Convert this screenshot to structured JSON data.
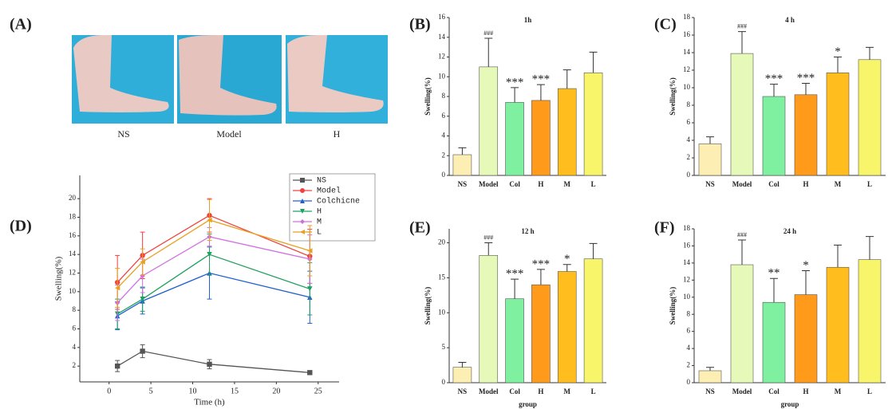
{
  "photos": {
    "panel": "(A)",
    "labels": [
      "NS",
      "Model",
      "H"
    ]
  },
  "chart_data": [
    {
      "type": "bar",
      "panel": "(B)",
      "title": "1h",
      "y_label": "Swelling(%)",
      "categories": [
        "NS",
        "Model",
        "Col",
        "H",
        "M",
        "L"
      ],
      "values": [
        2.1,
        11.0,
        7.4,
        7.6,
        8.8,
        10.4
      ],
      "errors": [
        0.7,
        2.9,
        1.5,
        1.6,
        1.9,
        2.1
      ],
      "annotations": [
        null,
        "###",
        "***",
        "***",
        null,
        null
      ],
      "colors": [
        "#fdeeb3",
        "#e6f9b9",
        "#7ef0a0",
        "#ff9a1a",
        "#ffbe1e",
        "#f8f56a"
      ],
      "ylim": [
        0,
        16
      ],
      "yticks": [
        0,
        2,
        4,
        6,
        8,
        10,
        12,
        14,
        16
      ]
    },
    {
      "type": "bar",
      "panel": "(C)",
      "title": "4 h",
      "y_label": "Swelling(%)",
      "categories": [
        "NS",
        "Model",
        "Col",
        "H",
        "M",
        "L"
      ],
      "values": [
        3.6,
        13.9,
        9.0,
        9.2,
        11.7,
        13.2
      ],
      "errors": [
        0.8,
        2.5,
        1.4,
        1.3,
        1.8,
        1.4
      ],
      "annotations": [
        null,
        "###",
        "***",
        "***",
        "*",
        null
      ],
      "colors": [
        "#fdeeb3",
        "#e6f9b9",
        "#7ef0a0",
        "#ff9a1a",
        "#ffbe1e",
        "#f8f56a"
      ],
      "ylim": [
        0,
        18
      ],
      "yticks": [
        0,
        2,
        4,
        6,
        8,
        10,
        12,
        14,
        16,
        18
      ]
    },
    {
      "type": "line",
      "panel": "(D)",
      "x_label": "Time (h)",
      "y_label": "Swelling(%)",
      "x": [
        1,
        4,
        12,
        24
      ],
      "series": [
        {
          "name": "NS",
          "color": "#555555",
          "marker": "square",
          "values": [
            2.0,
            3.6,
            2.2,
            1.3
          ],
          "errors": [
            0.6,
            0.7,
            0.5,
            0.2
          ]
        },
        {
          "name": "Model",
          "color": "#f04040",
          "marker": "circle",
          "values": [
            11.0,
            13.9,
            18.2,
            13.8
          ],
          "errors": [
            2.9,
            2.5,
            1.8,
            2.9
          ]
        },
        {
          "name": "Colchicne",
          "color": "#2060d0",
          "marker": "up",
          "values": [
            7.4,
            9.0,
            12.0,
            9.4
          ],
          "errors": [
            1.5,
            1.4,
            2.8,
            2.8
          ]
        },
        {
          "name": "H",
          "color": "#20a060",
          "marker": "down",
          "values": [
            7.6,
            9.2,
            14.0,
            10.3
          ],
          "errors": [
            1.6,
            1.3,
            2.2,
            2.8
          ]
        },
        {
          "name": "M",
          "color": "#d070e0",
          "marker": "diamond",
          "values": [
            8.8,
            11.7,
            15.9,
            13.5
          ],
          "errors": [
            1.9,
            1.8,
            1.0,
            2.6
          ]
        },
        {
          "name": "L",
          "color": "#e8a020",
          "marker": "left",
          "values": [
            10.4,
            13.2,
            17.7,
            14.4
          ],
          "errors": [
            2.1,
            1.4,
            2.2,
            2.7
          ]
        }
      ],
      "xlim": [
        -3.5,
        27.5
      ],
      "xticks": [
        0,
        5,
        10,
        15,
        20,
        25
      ],
      "ylim": [
        0.3,
        22.5
      ],
      "yticks": [
        2,
        4,
        6,
        8,
        10,
        12,
        14,
        16,
        18,
        20
      ]
    },
    {
      "type": "bar",
      "panel": "(E)",
      "title": "12 h",
      "y_label": "Swelling(%)",
      "x_label": "group",
      "categories": [
        "NS",
        "Model",
        "Col",
        "H",
        "M",
        "L"
      ],
      "values": [
        2.2,
        18.2,
        12.0,
        14.0,
        15.9,
        17.7
      ],
      "errors": [
        0.7,
        1.8,
        2.8,
        2.2,
        1.0,
        2.2
      ],
      "annotations": [
        null,
        "###",
        "***",
        "***",
        "*",
        null
      ],
      "colors": [
        "#fdeeb3",
        "#e6f9b9",
        "#7ef0a0",
        "#ff9a1a",
        "#ffbe1e",
        "#f8f56a"
      ],
      "ylim": [
        0,
        22
      ],
      "yticks": [
        0,
        5,
        10,
        15,
        20
      ]
    },
    {
      "type": "bar",
      "panel": "(F)",
      "title": "24 h",
      "y_label": "Swelling(%)",
      "x_label": "group",
      "categories": [
        "NS",
        "Model",
        "Col",
        "H",
        "M",
        "L"
      ],
      "values": [
        1.4,
        13.8,
        9.4,
        10.3,
        13.5,
        14.4
      ],
      "errors": [
        0.4,
        2.9,
        2.8,
        2.8,
        2.6,
        2.7
      ],
      "annotations": [
        null,
        "###",
        "**",
        "*",
        null,
        null
      ],
      "colors": [
        "#fdeeb3",
        "#e6f9b9",
        "#7ef0a0",
        "#ff9a1a",
        "#ffbe1e",
        "#f8f56a"
      ],
      "ylim": [
        0,
        18
      ],
      "yticks": [
        0,
        2,
        4,
        6,
        8,
        10,
        12,
        14,
        16,
        18
      ]
    }
  ]
}
